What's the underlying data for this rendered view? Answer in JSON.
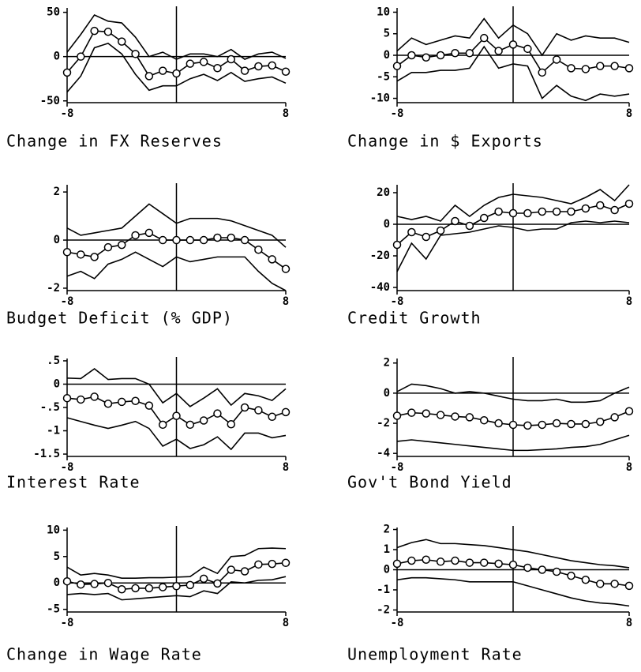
{
  "chart_data": [
    {
      "type": "line",
      "title": "Change in FX Reserves",
      "x": [
        -8,
        -7,
        -6,
        -5,
        -4,
        -3,
        -2,
        -1,
        0,
        1,
        2,
        3,
        4,
        5,
        6,
        7,
        8
      ],
      "xlim": [
        -8,
        8
      ],
      "xticks": [
        -8,
        8
      ],
      "ylim": [
        -52,
        55
      ],
      "yticks": [
        -50,
        0,
        50
      ],
      "hline": 0,
      "vline": 0,
      "series": [
        {
          "color": "#000",
          "marker": "circle",
          "values": [
            -18,
            0,
            29,
            28,
            17,
            3,
            -22,
            -16,
            -19,
            -8,
            -6,
            -13,
            -3,
            -16,
            -11,
            -10,
            -17
          ]
        },
        {
          "color": "#000",
          "values": [
            5,
            25,
            47,
            40,
            38,
            22,
            0,
            5,
            -3,
            3,
            3,
            0,
            8,
            -3,
            3,
            5,
            -2
          ]
        },
        {
          "color": "#000",
          "values": [
            -40,
            -22,
            10,
            15,
            3,
            -20,
            -38,
            -33,
            -33,
            -25,
            -20,
            -27,
            -18,
            -28,
            -25,
            -23,
            -30
          ]
        }
      ]
    },
    {
      "type": "line",
      "title": "Change in $ Exports",
      "x": [
        -8,
        -7,
        -6,
        -5,
        -4,
        -3,
        -2,
        -1,
        0,
        1,
        2,
        3,
        4,
        5,
        6,
        7,
        8
      ],
      "xlim": [
        -8,
        8
      ],
      "xticks": [
        -8,
        8
      ],
      "ylim": [
        -11,
        11
      ],
      "yticks": [
        -10,
        -5,
        0,
        5,
        10
      ],
      "hline": 0,
      "vline": 0,
      "series": [
        {
          "color": "#000",
          "marker": "circle",
          "values": [
            -2.5,
            0,
            -0.5,
            0,
            0.5,
            0.5,
            4,
            1,
            2.5,
            1.5,
            -4,
            -1,
            -3,
            -3.2,
            -2.5,
            -2.5,
            -3
          ]
        },
        {
          "color": "#000",
          "values": [
            1,
            4,
            2.5,
            3.5,
            4.5,
            4,
            8.5,
            4,
            7,
            5,
            0,
            5,
            3.5,
            4.5,
            4,
            4,
            3
          ]
        },
        {
          "color": "#000",
          "values": [
            -6,
            -4,
            -4,
            -3.5,
            -3.5,
            -3,
            2,
            -3,
            -2,
            -2.5,
            -10,
            -7,
            -9.5,
            -10.5,
            -9,
            -9.5,
            -9
          ]
        }
      ]
    },
    {
      "type": "line",
      "title": "Budget Deficit (% GDP)",
      "x": [
        -8,
        -7,
        -6,
        -5,
        -4,
        -3,
        -2,
        -1,
        0,
        1,
        2,
        3,
        4,
        5,
        6,
        7,
        8
      ],
      "xlim": [
        -8,
        8
      ],
      "xticks": [
        -8,
        8
      ],
      "ylim": [
        -2.1,
        2.3
      ],
      "yticks": [
        -2,
        0,
        2
      ],
      "hline": 0,
      "vline": 0,
      "series": [
        {
          "color": "#000",
          "marker": "circle",
          "values": [
            -0.5,
            -0.6,
            -0.7,
            -0.3,
            -0.2,
            0.2,
            0.3,
            0,
            0,
            0,
            0,
            0.1,
            0.1,
            0,
            -0.4,
            -0.8,
            -1.2
          ]
        },
        {
          "color": "#000",
          "values": [
            0.5,
            0.2,
            0.3,
            0.4,
            0.5,
            1,
            1.5,
            1.1,
            0.7,
            0.9,
            0.9,
            0.9,
            0.8,
            0.6,
            0.4,
            0.2,
            -0.3
          ]
        },
        {
          "color": "#000",
          "values": [
            -1.5,
            -1.3,
            -1.6,
            -1,
            -0.8,
            -0.5,
            -0.8,
            -1.1,
            -0.7,
            -0.9,
            -0.8,
            -0.7,
            -0.7,
            -0.7,
            -1.3,
            -1.8,
            -2.1
          ]
        }
      ]
    },
    {
      "type": "line",
      "title": "Credit Growth",
      "x": [
        -8,
        -7,
        -6,
        -5,
        -4,
        -3,
        -2,
        -1,
        0,
        1,
        2,
        3,
        4,
        5,
        6,
        7,
        8
      ],
      "xlim": [
        -8,
        8
      ],
      "xticks": [
        -8,
        8
      ],
      "ylim": [
        -42,
        25
      ],
      "yticks": [
        -40,
        -20,
        0,
        20
      ],
      "hline": 0,
      "vline": 0,
      "series": [
        {
          "color": "#000",
          "marker": "circle",
          "values": [
            -13,
            -5,
            -8,
            -4,
            2,
            -1,
            4,
            8,
            7,
            7,
            8,
            8,
            8,
            10,
            12,
            9,
            13
          ]
        },
        {
          "color": "#000",
          "values": [
            5,
            3,
            5,
            2,
            12,
            5,
            12,
            17,
            19,
            18,
            17,
            15,
            13,
            17,
            22,
            15,
            25
          ]
        },
        {
          "color": "#000",
          "values": [
            -30,
            -12,
            -22,
            -7,
            -6,
            -5,
            -3,
            -1,
            -2,
            -4,
            -3,
            -3,
            1,
            2,
            1,
            2,
            1
          ]
        }
      ]
    },
    {
      "type": "line",
      "title": "Interest Rate",
      "x": [
        -8,
        -7,
        -6,
        -5,
        -4,
        -3,
        -2,
        -1,
        0,
        1,
        2,
        3,
        4,
        5,
        6,
        7,
        8
      ],
      "xlim": [
        -8,
        8
      ],
      "xticks": [
        -8,
        8
      ],
      "ylim": [
        -1.55,
        0.55
      ],
      "yticks": [
        -1.5,
        -1,
        {
          "value": -0.5,
          "label": "-.5"
        },
        0,
        {
          "value": 0.5,
          "label": ".5"
        }
      ],
      "hline": 0,
      "vline": 0,
      "series": [
        {
          "color": "#000",
          "marker": "circle",
          "values": [
            -0.3,
            -0.33,
            -0.27,
            -0.42,
            -0.38,
            -0.36,
            -0.46,
            -0.87,
            -0.68,
            -0.87,
            -0.78,
            -0.63,
            -0.86,
            -0.5,
            -0.56,
            -0.7,
            -0.6
          ]
        },
        {
          "color": "#000",
          "values": [
            0.13,
            0.12,
            0.33,
            0.1,
            0.12,
            0.12,
            0,
            -0.4,
            -0.2,
            -0.48,
            -0.3,
            -0.1,
            -0.45,
            -0.2,
            -0.25,
            -0.35,
            -0.1
          ]
        },
        {
          "color": "#000",
          "values": [
            -0.72,
            -0.8,
            -0.88,
            -0.95,
            -0.88,
            -0.8,
            -0.95,
            -1.33,
            -1.18,
            -1.38,
            -1.3,
            -1.13,
            -1.4,
            -1.05,
            -1.05,
            -1.15,
            -1.1
          ]
        }
      ]
    },
    {
      "type": "line",
      "title": "Gov't Bond Yield",
      "x": [
        -8,
        -7,
        -6,
        -5,
        -4,
        -3,
        -2,
        -1,
        0,
        1,
        2,
        3,
        4,
        5,
        6,
        7,
        8
      ],
      "xlim": [
        -8,
        8
      ],
      "xticks": [
        -8,
        8
      ],
      "ylim": [
        -4.2,
        2.3
      ],
      "yticks": [
        -4,
        -2,
        0,
        2
      ],
      "hline": 0,
      "vline": 0,
      "series": [
        {
          "color": "#000",
          "marker": "circle",
          "values": [
            -1.5,
            -1.3,
            -1.35,
            -1.45,
            -1.55,
            -1.6,
            -1.8,
            -2,
            -2.1,
            -2.15,
            -2.1,
            -2,
            -2.05,
            -2.05,
            -1.9,
            -1.6,
            -1.2
          ]
        },
        {
          "color": "#000",
          "values": [
            0.1,
            0.6,
            0.5,
            0.3,
            0,
            0.1,
            0,
            -0.2,
            -0.4,
            -0.5,
            -0.5,
            -0.4,
            -0.6,
            -0.6,
            -0.5,
            0,
            0.4
          ]
        },
        {
          "color": "#000",
          "values": [
            -3.2,
            -3.1,
            -3.2,
            -3.3,
            -3.4,
            -3.5,
            -3.6,
            -3.7,
            -3.8,
            -3.8,
            -3.75,
            -3.7,
            -3.6,
            -3.55,
            -3.4,
            -3.1,
            -2.8
          ]
        }
      ]
    },
    {
      "type": "line",
      "title": "Change in Wage Rate",
      "x": [
        -8,
        -7,
        -6,
        -5,
        -4,
        -3,
        -2,
        -1,
        0,
        1,
        2,
        3,
        4,
        5,
        6,
        7,
        8
      ],
      "xlim": [
        -8,
        8
      ],
      "xticks": [
        -8,
        8
      ],
      "ylim": [
        -5.5,
        10.5
      ],
      "yticks": [
        -5,
        0,
        5,
        10
      ],
      "hline": 0,
      "vline": 0,
      "series": [
        {
          "color": "#000",
          "marker": "circle",
          "values": [
            0.3,
            -0.3,
            -0.2,
            0,
            -1.2,
            -1,
            -1,
            -0.8,
            -0.6,
            -0.4,
            0.8,
            -0.1,
            2.5,
            2.2,
            3.5,
            3.6,
            3.8
          ]
        },
        {
          "color": "#000",
          "values": [
            3,
            1.5,
            1.8,
            1.5,
            0.9,
            0.9,
            1,
            1,
            1.1,
            1.2,
            3,
            1.8,
            5,
            5.2,
            6.5,
            6.6,
            6.5
          ]
        },
        {
          "color": "#000",
          "values": [
            -2.2,
            -2,
            -2.2,
            -2,
            -3.2,
            -3,
            -2.8,
            -2.6,
            -2.4,
            -2.6,
            -1.5,
            -2,
            0.2,
            0,
            0.5,
            0.6,
            1.2
          ]
        }
      ]
    },
    {
      "type": "line",
      "title": "Unemployment Rate",
      "x": [
        -8,
        -7,
        -6,
        -5,
        -4,
        -3,
        -2,
        -1,
        0,
        1,
        2,
        3,
        4,
        5,
        6,
        7,
        8
      ],
      "xlim": [
        -8,
        8
      ],
      "xticks": [
        -8,
        8
      ],
      "ylim": [
        -2.1,
        2.1
      ],
      "yticks": [
        -2,
        -1,
        0,
        1,
        2
      ],
      "hline": 0,
      "vline": 0,
      "series": [
        {
          "color": "#000",
          "marker": "circle",
          "values": [
            0.3,
            0.45,
            0.5,
            0.4,
            0.45,
            0.35,
            0.35,
            0.3,
            0.25,
            0.1,
            0,
            -0.1,
            -0.3,
            -0.5,
            -0.7,
            -0.7,
            -0.8
          ]
        },
        {
          "color": "#000",
          "values": [
            1.1,
            1.35,
            1.5,
            1.3,
            1.3,
            1.25,
            1.2,
            1.1,
            1,
            0.9,
            0.75,
            0.6,
            0.45,
            0.35,
            0.25,
            0.2,
            0.1
          ]
        },
        {
          "color": "#000",
          "values": [
            -0.5,
            -0.4,
            -0.4,
            -0.45,
            -0.5,
            -0.6,
            -0.6,
            -0.6,
            -0.6,
            -0.8,
            -1,
            -1.2,
            -1.4,
            -1.55,
            -1.65,
            -1.7,
            -1.8
          ]
        }
      ]
    }
  ]
}
